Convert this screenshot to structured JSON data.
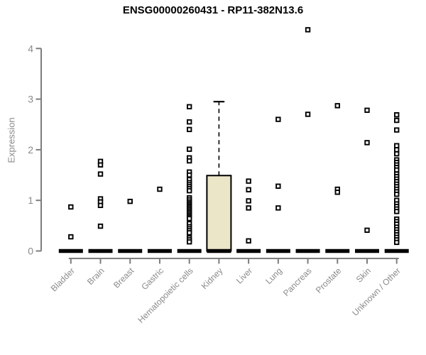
{
  "window": {
    "background": "#ffffff"
  },
  "chart_data": {
    "type": "boxplot",
    "title": "ENSG00000260431 - RP11-382N13.6",
    "ylabel": "Expression",
    "xlabel": "",
    "ylim": [
      0,
      4.4
    ],
    "yticks": [
      0,
      1,
      2,
      3,
      4
    ],
    "grid": false,
    "legend": "none",
    "categories": [
      "Bladder",
      "Brain",
      "Breast",
      "Gastric",
      "Hematopoietic cells",
      "Kidney",
      "Liver",
      "Lung",
      "Pancreas",
      "Prostate",
      "Skin",
      "Unknown / Other"
    ],
    "groups": [
      {
        "category": "Bladder",
        "q1": 0,
        "median": 0,
        "q3": 0,
        "whisker_low": 0,
        "whisker_high": 0,
        "outliers": [
          0.87,
          0.28
        ]
      },
      {
        "category": "Brain",
        "q1": 0,
        "median": 0,
        "q3": 0,
        "whisker_low": 0,
        "whisker_high": 0,
        "outliers": [
          1.77,
          1.7,
          1.52,
          1.03,
          0.97,
          0.9,
          0.49
        ]
      },
      {
        "category": "Breast",
        "q1": 0,
        "median": 0,
        "q3": 0,
        "whisker_low": 0,
        "whisker_high": 0,
        "outliers": [
          0.98
        ]
      },
      {
        "category": "Gastric",
        "q1": 0,
        "median": 0,
        "q3": 0,
        "whisker_low": 0,
        "whisker_high": 0,
        "outliers": [
          1.22
        ]
      },
      {
        "category": "Hematopoietic cells",
        "q1": 0,
        "median": 0,
        "q3": 0,
        "whisker_low": 0,
        "whisker_high": 0,
        "outliers": [
          2.85,
          2.55,
          2.4,
          2.01,
          1.84,
          1.78,
          1.56,
          1.5,
          1.41,
          1.35,
          1.31,
          1.27,
          1.23,
          1.19,
          1.05,
          1.01,
          0.97,
          0.94,
          0.91,
          0.88,
          0.85,
          0.82,
          0.79,
          0.76,
          0.73,
          0.7,
          0.67,
          0.64,
          0.54,
          0.48,
          0.44,
          0.4,
          0.36,
          0.26,
          0.22,
          0.18
        ]
      },
      {
        "category": "Kidney",
        "q1": 0,
        "median": 0,
        "q3": 1.49,
        "whisker_low": 0,
        "whisker_high": 2.95,
        "outliers": []
      },
      {
        "category": "Liver",
        "q1": 0,
        "median": 0,
        "q3": 0,
        "whisker_low": 0,
        "whisker_high": 0,
        "outliers": [
          1.38,
          1.21,
          0.99,
          0.85,
          0.2
        ]
      },
      {
        "category": "Lung",
        "q1": 0,
        "median": 0,
        "q3": 0,
        "whisker_low": 0,
        "whisker_high": 0,
        "outliers": [
          2.6,
          1.28,
          0.85
        ]
      },
      {
        "category": "Pancreas",
        "q1": 0,
        "median": 0,
        "q3": 0,
        "whisker_low": 0,
        "whisker_high": 0,
        "outliers": [
          4.37,
          2.7
        ]
      },
      {
        "category": "Prostate",
        "q1": 0,
        "median": 0,
        "q3": 0,
        "whisker_low": 0,
        "whisker_high": 0,
        "outliers": [
          2.87,
          1.22,
          1.16
        ]
      },
      {
        "category": "Skin",
        "q1": 0,
        "median": 0,
        "q3": 0,
        "whisker_low": 0,
        "whisker_high": 0,
        "outliers": [
          2.78,
          2.14,
          0.41
        ]
      },
      {
        "category": "Unknown / Other",
        "q1": 0,
        "median": 0,
        "q3": 0,
        "whisker_low": 0,
        "whisker_high": 0,
        "outliers": [
          2.69,
          2.58,
          2.39,
          2.08,
          2.0,
          1.92,
          1.8,
          1.75,
          1.7,
          1.65,
          1.6,
          1.52,
          1.47,
          1.42,
          1.37,
          1.32,
          1.27,
          1.22,
          1.17,
          1.12,
          1.0,
          0.93,
          0.88,
          0.83,
          0.78,
          0.63,
          0.58,
          0.53,
          0.47,
          0.42,
          0.37,
          0.32,
          0.27,
          0.22,
          0.17
        ]
      }
    ],
    "colors": {
      "box_fill": "#ece6c9",
      "box_stroke": "#000000",
      "median": "#000000",
      "whisker": "#000000",
      "outlier_stroke": "#000000",
      "outlier_fill": "#ffffff",
      "axis_line": "#7d7d7d",
      "tick_label": "#8a8a8a",
      "title": "#000000"
    }
  }
}
